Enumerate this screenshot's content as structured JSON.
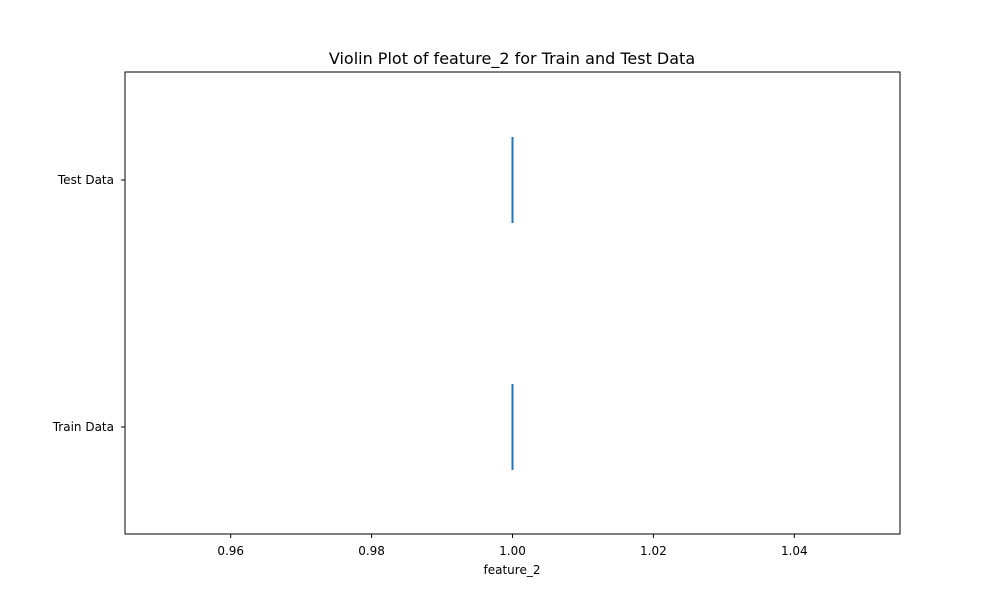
{
  "chart_data": {
    "type": "violin",
    "orientation": "horizontal",
    "title": "Violin Plot of feature_2 for Train and Test Data",
    "xlabel": "feature_2",
    "ylabel": "",
    "xlim": [
      0.945,
      1.055
    ],
    "x_ticks": [
      "0.96",
      "0.98",
      "1.00",
      "1.02",
      "1.04"
    ],
    "x_tick_values": [
      0.96,
      0.98,
      1.0,
      1.02,
      1.04
    ],
    "categories": [
      "Train Data",
      "Test Data"
    ],
    "series": [
      {
        "category": "Train Data",
        "values_constant": 1.0
      },
      {
        "category": "Test Data",
        "values_constant": 1.0
      }
    ],
    "grid": false,
    "colors": {
      "violin_line": "#1f77b4",
      "axes": "#000000"
    }
  }
}
